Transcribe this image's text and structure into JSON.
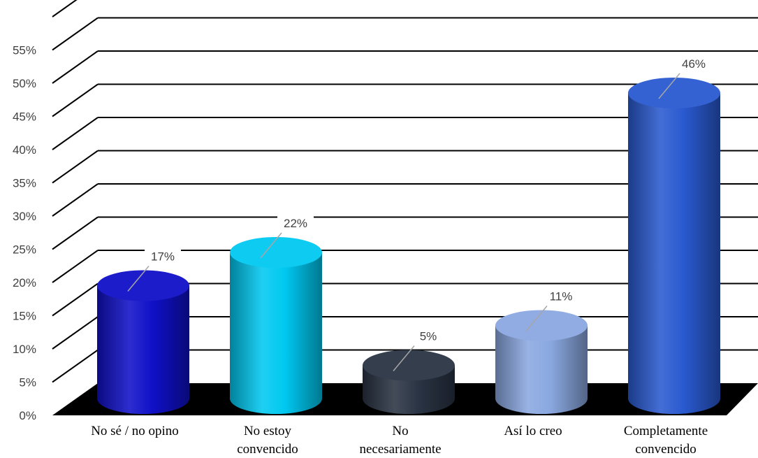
{
  "chart_data": {
    "type": "bar",
    "title": "",
    "xlabel": "",
    "ylabel": "",
    "categories": [
      [
        "No sé / no opino"
      ],
      [
        "No estoy",
        "convencido"
      ],
      [
        "No",
        "necesariamente"
      ],
      [
        "Así lo creo"
      ],
      [
        "Completamente",
        "convencido"
      ]
    ],
    "values": [
      17,
      22,
      5,
      11,
      46
    ],
    "data_labels": [
      "17%",
      "22%",
      "5%",
      "11%",
      "46%"
    ],
    "yticks": [
      "0%",
      "5%",
      "10%",
      "15%",
      "20%",
      "25%",
      "30%",
      "35%",
      "40%",
      "45%",
      "50%",
      "55%"
    ],
    "ylim": [
      0,
      60
    ],
    "grid": true,
    "legend": "none",
    "bar_style": "3d-cylinder",
    "bar_colors": [
      "#1010c8",
      "#00c8f0",
      "#2a3444",
      "#8aa8e0",
      "#2a5ad0"
    ],
    "floor_color": "#000000"
  }
}
